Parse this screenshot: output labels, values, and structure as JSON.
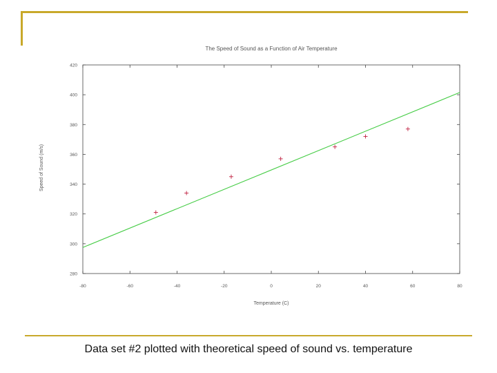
{
  "slide": {
    "caption": "Data set #2 plotted with theoretical speed of sound vs. temperature",
    "accent_color": "#c8a82a"
  },
  "chart_data": {
    "type": "scatter",
    "title": "The Speed of Sound as a Function of Air Temperature",
    "xlabel": "Temperature (C)",
    "ylabel": "Speed of Sound (m/s)",
    "xlim": [
      -80,
      80
    ],
    "ylim": [
      280,
      420
    ],
    "x_ticks": [
      -80,
      -60,
      -40,
      -20,
      0,
      20,
      40,
      60,
      80
    ],
    "x_tick_labels": [
      "-80",
      "-60",
      "-40",
      "-20",
      "0",
      "20",
      "40",
      "60",
      "80"
    ],
    "y_ticks": [
      280,
      300,
      320,
      340,
      360,
      380,
      400,
      420
    ],
    "y_tick_labels": [
      "280",
      "300",
      "320",
      "340",
      "360",
      "380",
      "400",
      "420"
    ],
    "grid": false,
    "series": [
      {
        "kind": "points",
        "color": "#c02040",
        "marker": "plus",
        "x": [
          -49,
          -36,
          -17,
          4,
          27,
          40,
          58
        ],
        "y": [
          321,
          334,
          345,
          357,
          365,
          372,
          377
        ]
      },
      {
        "kind": "line",
        "color": "#44cc44",
        "x": [
          -80,
          80
        ],
        "y": [
          297.5,
          401.5
        ]
      }
    ]
  }
}
